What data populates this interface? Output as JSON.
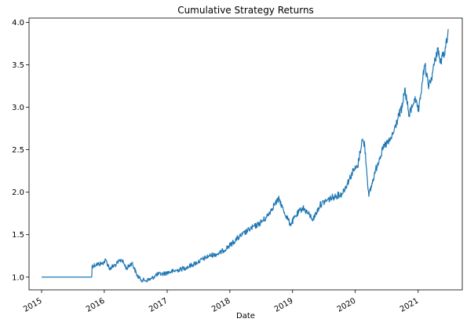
{
  "chart_data": {
    "type": "line",
    "title": "Cumulative Strategy Returns",
    "xlabel": "Date",
    "ylabel": "",
    "xlim": [
      "2014-10-20",
      "2021-09-15"
    ],
    "ylim": [
      0.85,
      4.05
    ],
    "x_ticks": [
      {
        "date": "2015-01-01",
        "label": "2015"
      },
      {
        "date": "2016-01-01",
        "label": "2016"
      },
      {
        "date": "2017-01-01",
        "label": "2017"
      },
      {
        "date": "2018-01-01",
        "label": "2018"
      },
      {
        "date": "2019-01-01",
        "label": "2019"
      },
      {
        "date": "2020-01-01",
        "label": "2020"
      },
      {
        "date": "2021-01-01",
        "label": "2021"
      }
    ],
    "y_ticks": [
      {
        "value": 1.0,
        "label": "1.0"
      },
      {
        "value": 1.5,
        "label": "1.5"
      },
      {
        "value": 2.0,
        "label": "2.0"
      },
      {
        "value": 2.5,
        "label": "2.5"
      },
      {
        "value": 3.0,
        "label": "3.0"
      },
      {
        "value": 3.5,
        "label": "3.5"
      },
      {
        "value": 4.0,
        "label": "4.0"
      }
    ],
    "grid": false,
    "legend": "none",
    "series": [
      {
        "color": "#1f77b4",
        "points": [
          [
            "2015-01-01",
            1.0
          ],
          [
            "2015-10-20",
            1.0
          ],
          [
            "2015-10-22",
            1.13
          ],
          [
            "2015-11-15",
            1.15
          ],
          [
            "2015-12-20",
            1.16
          ],
          [
            "2016-01-10",
            1.2
          ],
          [
            "2016-02-01",
            1.1
          ],
          [
            "2016-03-10",
            1.15
          ],
          [
            "2016-04-10",
            1.21
          ],
          [
            "2016-05-10",
            1.1
          ],
          [
            "2016-06-10",
            1.17
          ],
          [
            "2016-07-10",
            1.02
          ],
          [
            "2016-08-01",
            0.97
          ],
          [
            "2016-09-01",
            0.96
          ],
          [
            "2016-10-01",
            0.98
          ],
          [
            "2016-11-01",
            1.03
          ],
          [
            "2016-12-10",
            1.04
          ],
          [
            "2017-01-15",
            1.06
          ],
          [
            "2017-03-01",
            1.08
          ],
          [
            "2017-05-01",
            1.12
          ],
          [
            "2017-07-01",
            1.18
          ],
          [
            "2017-09-01",
            1.25
          ],
          [
            "2017-11-01",
            1.28
          ],
          [
            "2018-01-05",
            1.38
          ],
          [
            "2018-02-10",
            1.45
          ],
          [
            "2018-03-15",
            1.5
          ],
          [
            "2018-05-01",
            1.57
          ],
          [
            "2018-06-15",
            1.62
          ],
          [
            "2018-08-01",
            1.7
          ],
          [
            "2018-09-15",
            1.85
          ],
          [
            "2018-10-15",
            1.92
          ],
          [
            "2018-11-10",
            1.78
          ],
          [
            "2018-12-20",
            1.62
          ],
          [
            "2019-01-20",
            1.72
          ],
          [
            "2019-03-01",
            1.82
          ],
          [
            "2019-04-01",
            1.75
          ],
          [
            "2019-05-01",
            1.68
          ],
          [
            "2019-06-10",
            1.85
          ],
          [
            "2019-07-15",
            1.9
          ],
          [
            "2019-09-01",
            1.95
          ],
          [
            "2019-10-15",
            1.98
          ],
          [
            "2019-11-15",
            2.1
          ],
          [
            "2019-12-20",
            2.25
          ],
          [
            "2020-01-15",
            2.3
          ],
          [
            "2020-02-10",
            2.62
          ],
          [
            "2020-02-25",
            2.55
          ],
          [
            "2020-03-20",
            1.95
          ],
          [
            "2020-04-20",
            2.2
          ],
          [
            "2020-05-20",
            2.4
          ],
          [
            "2020-06-20",
            2.55
          ],
          [
            "2020-07-20",
            2.6
          ],
          [
            "2020-08-10",
            2.7
          ],
          [
            "2020-09-10",
            2.9
          ],
          [
            "2020-10-01",
            3.0
          ],
          [
            "2020-10-15",
            3.22
          ],
          [
            "2020-11-10",
            2.9
          ],
          [
            "2020-12-10",
            3.1
          ],
          [
            "2021-01-05",
            2.95
          ],
          [
            "2021-01-25",
            3.3
          ],
          [
            "2021-02-10",
            3.5
          ],
          [
            "2021-03-01",
            3.25
          ],
          [
            "2021-03-20",
            3.35
          ],
          [
            "2021-04-10",
            3.55
          ],
          [
            "2021-04-25",
            3.7
          ],
          [
            "2021-05-10",
            3.52
          ],
          [
            "2021-05-25",
            3.6
          ],
          [
            "2021-06-10",
            3.7
          ],
          [
            "2021-06-25",
            3.92
          ]
        ]
      }
    ]
  }
}
